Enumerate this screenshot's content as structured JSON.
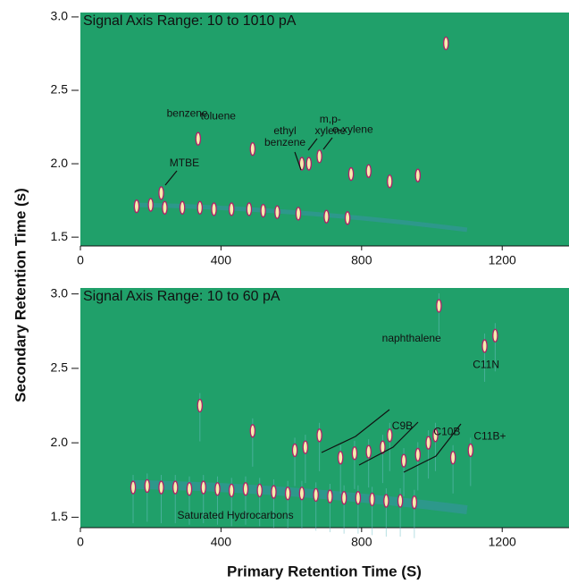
{
  "xlabel": "Primary Retention Time (S)",
  "ylabel": "Secondary Retention Time (s)",
  "chart_data": [
    {
      "type": "scatter",
      "title": "Signal Axis Range: 10 to 1010 pA",
      "xlim": [
        0,
        1390
      ],
      "xticks": [
        0,
        400,
        800,
        1200
      ],
      "ylim": [
        1.44,
        3.03
      ],
      "yticks": [
        {
          "value": 1.5,
          "label": "1.5"
        },
        {
          "value": 2.0,
          "label": "2.0"
        },
        {
          "value": 2.5,
          "label": "2.5"
        },
        {
          "value": 3.0,
          "label": "3.0"
        }
      ],
      "background": "#20a06a",
      "color": "#f4eeae",
      "edge_color": "#b0206a",
      "x": [
        160,
        200,
        240,
        290,
        340,
        380,
        430,
        480,
        520,
        560,
        620,
        700,
        760,
        230,
        335,
        490,
        630,
        650,
        680,
        770,
        820,
        880,
        960,
        1040
      ],
      "values": [
        1.71,
        1.72,
        1.7,
        1.7,
        1.7,
        1.69,
        1.69,
        1.69,
        1.68,
        1.67,
        1.66,
        1.64,
        1.63,
        1.8,
        2.17,
        2.1,
        2.0,
        2.0,
        2.05,
        1.93,
        1.95,
        1.88,
        1.92,
        2.82
      ],
      "annotations": [
        {
          "text": [
            "benzene"
          ],
          "x": 304,
          "y": 2.34
        },
        {
          "text": [
            "toluene"
          ],
          "x": 392,
          "y": 2.32
        },
        {
          "text": [
            "ethyl",
            "benzene"
          ],
          "x": 582,
          "y": 2.22
        },
        {
          "text": [
            "m,p-",
            "xylene"
          ],
          "x": 711,
          "y": 2.3
        },
        {
          "text": [
            "o-xylene"
          ],
          "x": 775,
          "y": 2.23
        },
        {
          "text": [
            "MTBE"
          ],
          "x": 296,
          "y": 2.0
        }
      ]
    },
    {
      "type": "scatter",
      "title": "Signal Axis Range: 10 to 60 pA",
      "xlim": [
        0,
        1390
      ],
      "xticks": [
        0,
        400,
        800,
        1200
      ],
      "ylim": [
        1.43,
        3.04
      ],
      "yticks": [
        {
          "value": 1.5,
          "label": "1.5"
        },
        {
          "value": 2.0,
          "label": "2.0"
        },
        {
          "value": 2.5,
          "label": "2.5"
        },
        {
          "value": 3.0,
          "label": "3.0"
        }
      ],
      "background": "#20a06a",
      "color": "#f4eeae",
      "edge_color": "#b0206a",
      "x": [
        150,
        190,
        230,
        270,
        310,
        350,
        390,
        430,
        470,
        510,
        550,
        590,
        630,
        670,
        710,
        750,
        790,
        830,
        870,
        910,
        950,
        340,
        490,
        610,
        640,
        680,
        740,
        780,
        820,
        860,
        880,
        920,
        960,
        990,
        1010,
        1020,
        1150,
        1180,
        1060,
        1110
      ],
      "values": [
        1.7,
        1.71,
        1.7,
        1.7,
        1.69,
        1.7,
        1.69,
        1.68,
        1.69,
        1.68,
        1.67,
        1.66,
        1.66,
        1.65,
        1.64,
        1.63,
        1.63,
        1.62,
        1.61,
        1.61,
        1.6,
        2.25,
        2.08,
        1.95,
        1.97,
        2.05,
        1.9,
        1.93,
        1.94,
        1.97,
        2.05,
        1.88,
        1.92,
        2.0,
        2.05,
        2.92,
        2.65,
        2.72,
        1.9,
        1.95
      ],
      "annotations": [
        {
          "text": [
            "naphthalene"
          ],
          "x": 942,
          "y": 2.7
        },
        {
          "text": [
            "C11N"
          ],
          "x": 1154,
          "y": 2.52
        },
        {
          "text": [
            "C9B"
          ],
          "x": 916,
          "y": 2.11
        },
        {
          "text": [
            "C10B"
          ],
          "x": 1043,
          "y": 2.07
        },
        {
          "text": [
            "C11B+"
          ],
          "x": 1165,
          "y": 2.04
        },
        {
          "text": [
            "Saturated Hydrocarbons"
          ],
          "x": 441,
          "y": 1.51
        }
      ]
    }
  ]
}
